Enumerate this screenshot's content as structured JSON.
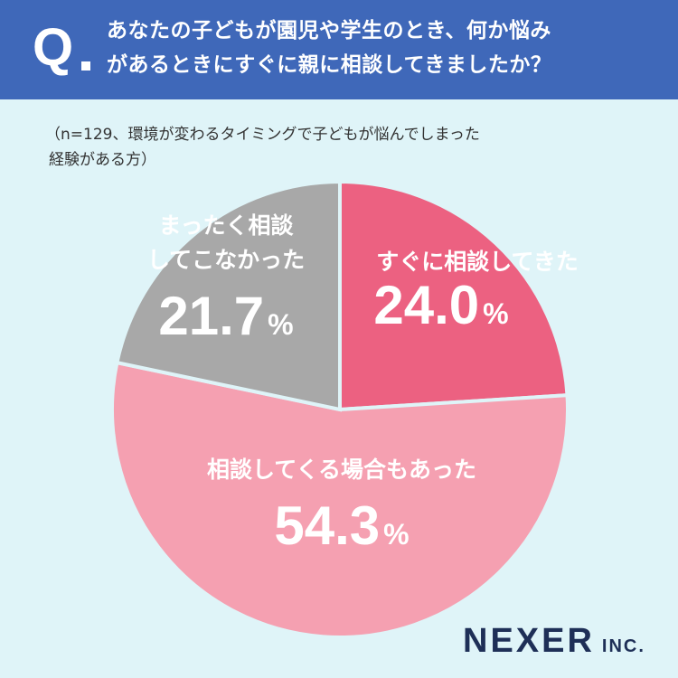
{
  "header": {
    "q_mark": "Q",
    "question_lines": [
      "あなたの子どもが園児や学生のとき、何か悩み",
      "があるときにすぐに親に相談してきましたか？"
    ]
  },
  "note_lines": [
    "（n=129、環境が変わるタイミングで子どもが悩んでしまった",
    "経験がある方）"
  ],
  "colors": {
    "header_bg": "#3f68b9",
    "background": "#dff4f8",
    "slice_consulted": "#ec6181",
    "slice_sometimes": "#f5a0b1",
    "slice_never": "#a8a8a8",
    "pie_border": "#dff4f8"
  },
  "chart_data": {
    "type": "pie",
    "start": "12 o'clock, clockwise",
    "slices": [
      {
        "label": "すぐに相談してきた",
        "value": 24.0,
        "display": "24.0",
        "color": "#ec6181"
      },
      {
        "label": "相談してくる場合もあった",
        "value": 54.3,
        "display": "54.3",
        "color": "#f5a0b1"
      },
      {
        "label_lines": [
          "まったく相談",
          "してこなかった"
        ],
        "value": 21.7,
        "display": "21.7",
        "color": "#a8a8a8"
      }
    ],
    "unit": "%"
  },
  "footer": {
    "logo_main": "NEXER",
    "logo_sub": "INC."
  }
}
